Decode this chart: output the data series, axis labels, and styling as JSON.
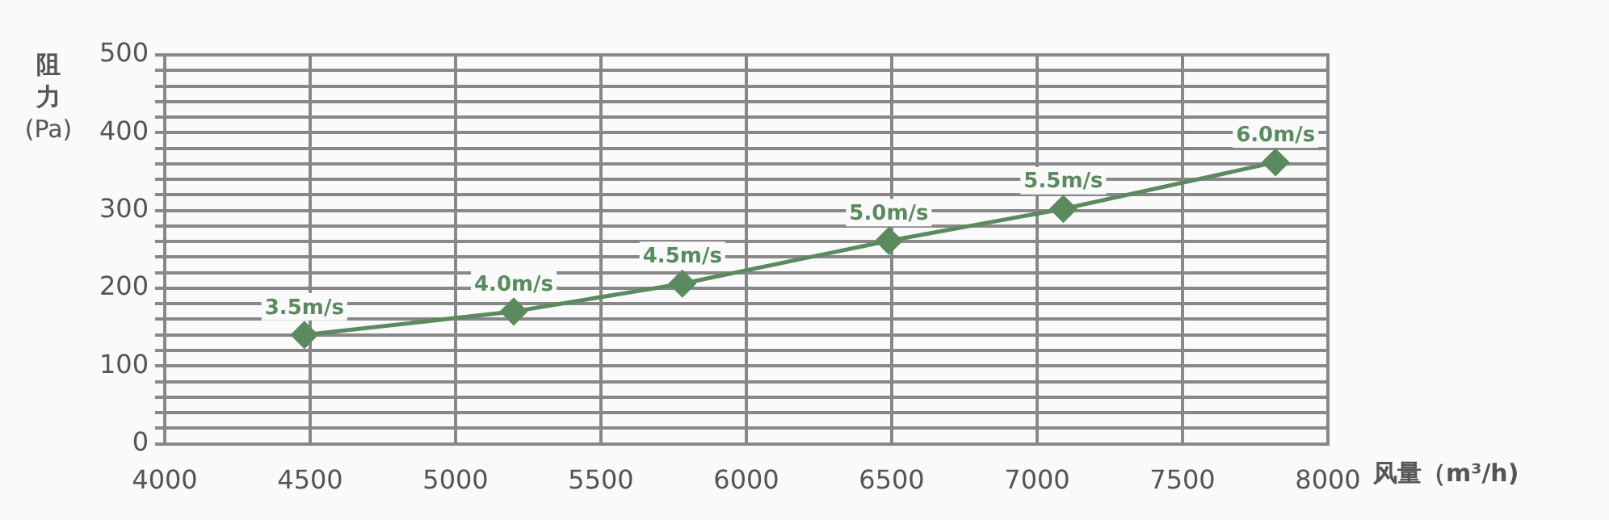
{
  "chart_data": {
    "type": "line",
    "ylabel": "阻力 (Pa)",
    "xlabel": "风量（m³/h)",
    "x": [
      4480,
      5200,
      5780,
      6490,
      7090,
      7820
    ],
    "series": [
      {
        "color": "#5b8a5e",
        "values": [
          140,
          170,
          206,
          261,
          302,
          362
        ]
      }
    ],
    "annotations": [
      {
        "text": "3.5m/s",
        "x": 4480,
        "y": 140
      },
      {
        "text": "4.0m/s",
        "x": 5200,
        "y": 170
      },
      {
        "text": "4.5m/s",
        "x": 5780,
        "y": 206
      },
      {
        "text": "5.0m/s",
        "x": 6490,
        "y": 261
      },
      {
        "text": "5.5m/s",
        "x": 7090,
        "y": 302
      },
      {
        "text": "6.0m/s",
        "x": 7820,
        "y": 362
      }
    ],
    "xlim": [
      4000,
      8000
    ],
    "xticks": [
      4000,
      4500,
      5000,
      5500,
      6000,
      6500,
      7000,
      7500,
      8000
    ],
    "ylim": [
      0,
      500
    ],
    "yticks": [
      0,
      {
        "value": 20,
        "label": null
      },
      {
        "value": 40,
        "label": null
      },
      {
        "value": 60,
        "label": null
      },
      {
        "value": 80,
        "label": null
      },
      100,
      {
        "value": 120,
        "label": null
      },
      {
        "value": 140,
        "label": null
      },
      {
        "value": 160,
        "label": null
      },
      {
        "value": 180,
        "label": null
      },
      200,
      {
        "value": 220,
        "label": null
      },
      {
        "value": 240,
        "label": null
      },
      {
        "value": 260,
        "label": null
      },
      {
        "value": 280,
        "label": null
      },
      300,
      {
        "value": 320,
        "label": null
      },
      {
        "value": 340,
        "label": null
      },
      {
        "value": 360,
        "label": null
      },
      {
        "value": 380,
        "label": null
      },
      400,
      {
        "value": 420,
        "label": null
      },
      {
        "value": 440,
        "label": null
      },
      {
        "value": 460,
        "label": null
      },
      {
        "value": 480,
        "label": null
      },
      500
    ],
    "grid": true,
    "legend": false,
    "marker": "diamond",
    "line_style": "solid"
  }
}
